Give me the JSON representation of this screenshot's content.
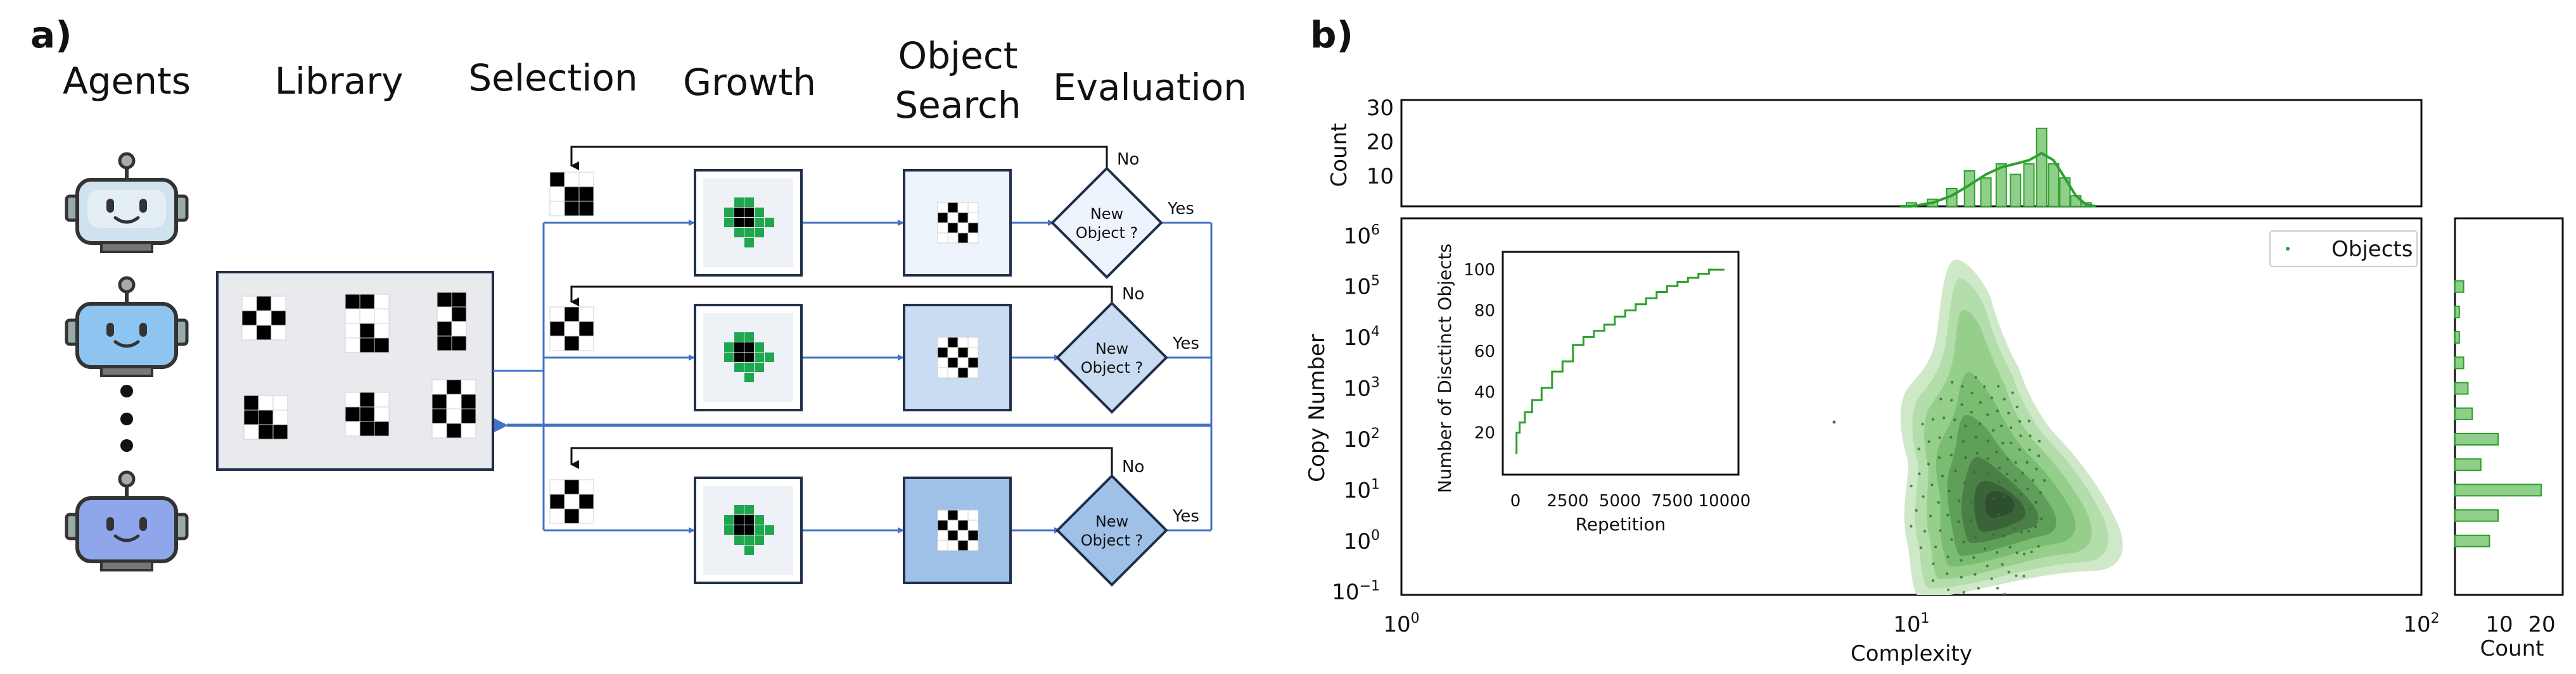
{
  "panel_a": {
    "label": "a)",
    "headers": {
      "agents": "Agents",
      "library": "Library",
      "selection": "Selection",
      "growth": "Growth",
      "object_search_1": "Object",
      "object_search_2": "Search",
      "evaluation": "Evaluation"
    },
    "decision_line1": "New",
    "decision_line2": "Object ?",
    "no_label": "No",
    "yes_label": "Yes",
    "agent_colors": [
      "#cfe2ee",
      "#8ec5f0",
      "#8fa6ea"
    ],
    "lane_fill_colors": [
      "#eef4fb",
      "#c9dcf1",
      "#9fc1e8"
    ],
    "accent_green": "#1fa74f",
    "flow_blue": "#4472c4"
  },
  "panel_b": {
    "label": "b)",
    "top_hist": {
      "ylabel": "Count",
      "yticks": [
        "10",
        "20",
        "30"
      ]
    },
    "main": {
      "xlabel": "Complexity",
      "ylabel": "Copy Number",
      "xticks": [
        "10",
        "10",
        "10"
      ],
      "xtick_exps": [
        "0",
        "1",
        "2"
      ],
      "yticks": [
        "10",
        "10",
        "10",
        "10",
        "10",
        "10",
        "10",
        "10"
      ],
      "ytick_exps": [
        "−1",
        "0",
        "1",
        "2",
        "3",
        "4",
        "5",
        "6"
      ],
      "legend": "Objects"
    },
    "inset": {
      "xlabel": "Repetition",
      "ylabel": "Number of Disctinct Objects",
      "xticks": [
        "0",
        "2500",
        "5000",
        "7500",
        "10000"
      ],
      "yticks": [
        "20",
        "40",
        "60",
        "80",
        "100"
      ]
    },
    "right_hist": {
      "xlabel": "Count",
      "xticks": [
        "10",
        "20"
      ]
    },
    "colors": {
      "green": "#2ca02c",
      "green_fill": "#8fcf8a"
    }
  },
  "chart_data": [
    {
      "type": "line",
      "xlabel": "Repetition",
      "ylabel": "Number of Disctinct Objects",
      "xlim": [
        0,
        10000
      ],
      "ylim": [
        5,
        105
      ],
      "x": [
        0,
        100,
        300,
        600,
        1000,
        1500,
        2000,
        2500,
        3000,
        3500,
        4000,
        4500,
        5000,
        5500,
        6000,
        6500,
        7000,
        7500,
        8000,
        8500,
        9000,
        9500,
        10000
      ],
      "values": [
        10,
        20,
        25,
        30,
        36,
        42,
        50,
        55,
        63,
        67,
        70,
        73,
        77,
        80,
        83,
        86,
        89,
        92,
        94,
        96,
        98,
        100,
        100
      ]
    },
    {
      "type": "bar",
      "xlabel": "Complexity",
      "ylabel": "Count",
      "ylim": [
        0,
        30
      ],
      "x": [
        10,
        11,
        12,
        13,
        14,
        15,
        16,
        17,
        18,
        19,
        20,
        21,
        22
      ],
      "values": [
        1,
        2,
        5,
        10,
        8,
        12,
        9,
        12,
        22,
        12,
        8,
        3,
        1
      ]
    },
    {
      "type": "bar",
      "xlabel": "Count",
      "ylabel": "Copy Number",
      "xlim": [
        0,
        25
      ],
      "x": [
        "10^5",
        "10^4.5",
        "10^4",
        "10^3.5",
        "10^3",
        "10^2.5",
        "10^2",
        "10^1.5",
        "10^1",
        "10^0.5",
        "10^0"
      ],
      "values": [
        2,
        1,
        1,
        2,
        3,
        4,
        10,
        6,
        20,
        10,
        8
      ]
    }
  ]
}
